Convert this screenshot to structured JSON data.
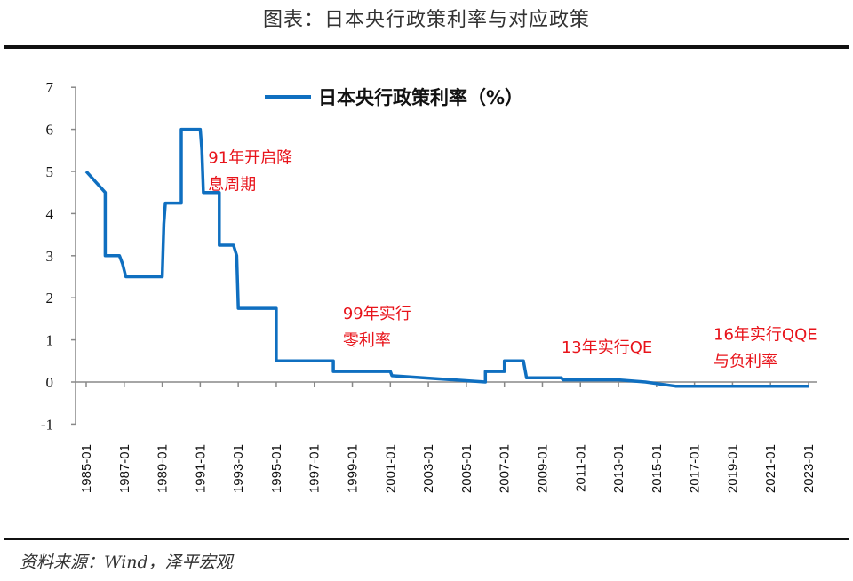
{
  "title": "图表：日本央行政策利率与对应政策",
  "source": "资料来源：Wind，泽平宏观",
  "chart_data": {
    "type": "line",
    "title": "图表：日本央行政策利率与对应政策",
    "ylim": [
      -1,
      7
    ],
    "yticks": [
      "7",
      "6",
      "5",
      "4",
      "3",
      "2",
      "1",
      "0",
      "-1"
    ],
    "xlim": [
      "1985-01",
      "2023-01"
    ],
    "xticks": [
      "1985-01",
      "1987-01",
      "1989-01",
      "1991-01",
      "1993-01",
      "1995-01",
      "1997-01",
      "1999-01",
      "2001-01",
      "2003-01",
      "2005-01",
      "2007-01",
      "2009-01",
      "2011-01",
      "2013-01",
      "2015-01",
      "2017-01",
      "2019-01",
      "2021-01",
      "2023-01"
    ],
    "grid": false,
    "legend_position": "top-center",
    "series": [
      {
        "name": "日本央行政策利率（%）",
        "color": "#0f6fc0",
        "points": [
          [
            "1985-01",
            5.0
          ],
          [
            "1986-01",
            4.5
          ],
          [
            "1986-01",
            3.0
          ],
          [
            "1986-10",
            3.0
          ],
          [
            "1986-12",
            2.8
          ],
          [
            "1987-02",
            2.5
          ],
          [
            "1989-01",
            2.5
          ],
          [
            "1989-02",
            3.75
          ],
          [
            "1989-03",
            4.25
          ],
          [
            "1989-10",
            4.25
          ],
          [
            "1990-01",
            4.25
          ],
          [
            "1990-01",
            6.0
          ],
          [
            "1991-01",
            6.0
          ],
          [
            "1991-02",
            5.5
          ],
          [
            "1991-03",
            4.5
          ],
          [
            "1991-11",
            4.5
          ],
          [
            "1992-01",
            4.5
          ],
          [
            "1992-01",
            3.25
          ],
          [
            "1992-10",
            3.25
          ],
          [
            "1992-12",
            3.0
          ],
          [
            "1993-01",
            1.75
          ],
          [
            "1995-01",
            1.75
          ],
          [
            "1995-01",
            0.5
          ],
          [
            "1998-01",
            0.5
          ],
          [
            "1998-01",
            0.25
          ],
          [
            "2001-01",
            0.25
          ],
          [
            "2001-02",
            0.15
          ],
          [
            "2006-01",
            0.0
          ],
          [
            "2006-01",
            0.25
          ],
          [
            "2007-01",
            0.25
          ],
          [
            "2007-01",
            0.5
          ],
          [
            "2008-01",
            0.5
          ],
          [
            "2008-03",
            0.1
          ],
          [
            "2010-01",
            0.1
          ],
          [
            "2010-02",
            0.05
          ],
          [
            "2013-01",
            0.05
          ],
          [
            "2014-06",
            0.0
          ],
          [
            "2016-01",
            -0.1
          ],
          [
            "2023-01",
            -0.1
          ]
        ]
      }
    ],
    "annotations": [
      {
        "lines": [
          "91年开启降",
          "息周期"
        ],
        "at": [
          "1991-06",
          5.2
        ]
      },
      {
        "lines": [
          "99年实行",
          "零利率"
        ],
        "at": [
          "1998-07",
          1.5
        ]
      },
      {
        "lines": [
          "13年实行QE"
        ],
        "at": [
          "2010-01",
          0.7
        ]
      },
      {
        "lines": [
          "16年实行QQE",
          "与负利率"
        ],
        "at": [
          "2018-01",
          1.0
        ]
      }
    ]
  }
}
